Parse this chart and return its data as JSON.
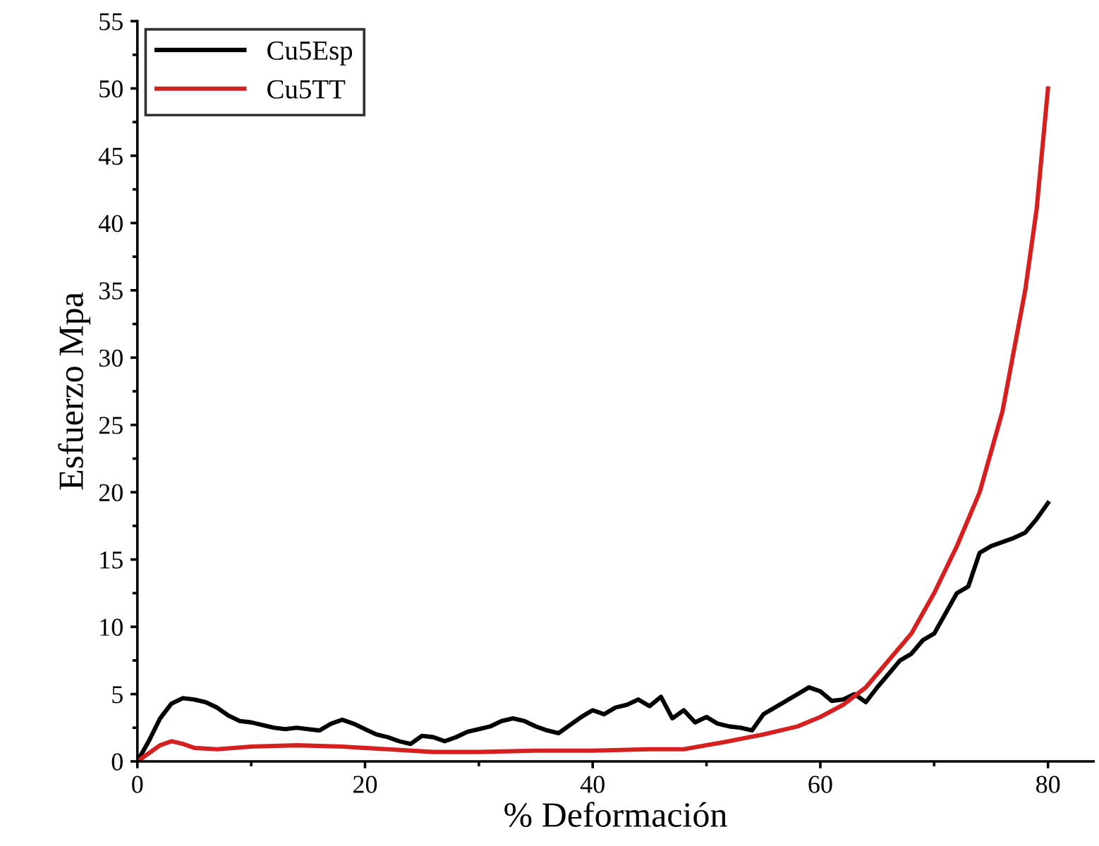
{
  "chart_data": {
    "type": "line",
    "xlabel": "% Deformación",
    "ylabel": "Esfuerzo Mpa",
    "xlim": [
      0,
      84
    ],
    "ylim": [
      0,
      55
    ],
    "xticks": [
      0,
      {
        "value": 10,
        "label": null
      },
      20,
      {
        "value": 30,
        "label": null
      },
      40,
      {
        "value": 50,
        "label": null
      },
      60,
      {
        "value": 70,
        "label": null
      },
      80
    ],
    "yticks": [
      0,
      {
        "value": 2.5,
        "label": null
      },
      5,
      {
        "value": 7.5,
        "label": null
      },
      10,
      {
        "value": 12.5,
        "label": null
      },
      15,
      {
        "value": 17.5,
        "label": null
      },
      20,
      {
        "value": 22.5,
        "label": null
      },
      25,
      {
        "value": 27.5,
        "label": null
      },
      30,
      {
        "value": 32.5,
        "label": null
      },
      35,
      {
        "value": 37.5,
        "label": null
      },
      40,
      {
        "value": 42.5,
        "label": null
      },
      45,
      {
        "value": 47.5,
        "label": null
      },
      50,
      {
        "value": 52.5,
        "label": null
      },
      55
    ],
    "grid": false,
    "legend": "top left",
    "line_style": "solid",
    "marker": "none",
    "series": [
      {
        "name": "Cu5Esp",
        "color": "#000000",
        "x": [
          0,
          1,
          2,
          3,
          4,
          5,
          6,
          7,
          8,
          9,
          10,
          11,
          12,
          13,
          14,
          15,
          16,
          17,
          18,
          19,
          20,
          21,
          22,
          23,
          24,
          25,
          26,
          27,
          28,
          29,
          30,
          31,
          32,
          33,
          34,
          35,
          36,
          37,
          38,
          39,
          40,
          41,
          42,
          43,
          44,
          45,
          46,
          47,
          48,
          49,
          50,
          51,
          52,
          53,
          54,
          55,
          56,
          57,
          58,
          59,
          60,
          61,
          62,
          63,
          64,
          65,
          66,
          67,
          68,
          69,
          70,
          71,
          72,
          73,
          74,
          75,
          76,
          77,
          78,
          79,
          80
        ],
        "values": [
          0,
          1.5,
          3.2,
          4.3,
          4.7,
          4.6,
          4.4,
          4.0,
          3.4,
          3.0,
          2.9,
          2.7,
          2.5,
          2.4,
          2.5,
          2.4,
          2.3,
          2.8,
          3.1,
          2.8,
          2.4,
          2.0,
          1.8,
          1.5,
          1.3,
          1.9,
          1.8,
          1.5,
          1.8,
          2.2,
          2.4,
          2.6,
          3.0,
          3.2,
          3.0,
          2.6,
          2.3,
          2.1,
          2.7,
          3.3,
          3.8,
          3.5,
          4.0,
          4.2,
          4.6,
          4.1,
          4.8,
          3.2,
          3.8,
          2.9,
          3.3,
          2.8,
          2.6,
          2.5,
          2.3,
          3.5,
          4.0,
          4.5,
          5.0,
          5.5,
          5.2,
          4.5,
          4.6,
          5.0,
          4.4,
          5.5,
          6.5,
          7.5,
          8.0,
          9.0,
          9.5,
          11.0,
          12.5,
          13.0,
          15.5,
          16.0,
          16.3,
          16.6,
          17.0,
          18.0,
          19.2
        ]
      },
      {
        "name": "Cu5TT",
        "color": "#d62020",
        "x": [
          0,
          1,
          2,
          3,
          4,
          5,
          7,
          10,
          14,
          18,
          22,
          26,
          30,
          35,
          40,
          45,
          48,
          50,
          52,
          55,
          58,
          60,
          62,
          64,
          66,
          68,
          70,
          72,
          74,
          76,
          78,
          79,
          80
        ],
        "values": [
          0,
          0.6,
          1.2,
          1.5,
          1.3,
          1.0,
          0.9,
          1.1,
          1.2,
          1.1,
          0.9,
          0.7,
          0.7,
          0.8,
          0.8,
          0.9,
          0.9,
          1.2,
          1.5,
          2.0,
          2.6,
          3.3,
          4.2,
          5.5,
          7.5,
          9.5,
          12.5,
          16,
          20,
          26,
          35,
          41,
          50
        ]
      }
    ]
  }
}
